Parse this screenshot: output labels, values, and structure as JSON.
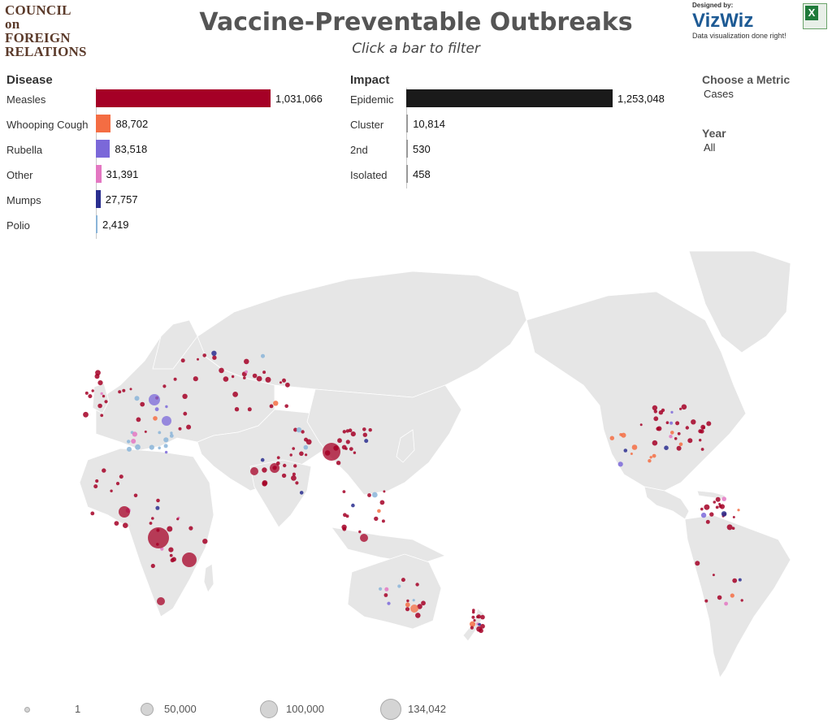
{
  "header": {
    "org_logo": "COUNCIL on FOREIGN RELATIONS",
    "title": "Vaccine-Preventable Outbreaks",
    "subtitle": "Click a bar to filter",
    "designer_label": "Designed by:",
    "designer_brand": "VizWiz",
    "designer_tagline": "Data visualization done right!",
    "export_icon": "excel-icon"
  },
  "disease_chart": {
    "heading": "Disease",
    "max": 1031066,
    "items": [
      {
        "label": "Measles",
        "value": 1031066,
        "value_label": "1,031,066",
        "color": "#a50026"
      },
      {
        "label": "Whooping Cough",
        "value": 88702,
        "value_label": "88,702",
        "color": "#f46d43"
      },
      {
        "label": "Rubella",
        "value": 83518,
        "value_label": "83,518",
        "color": "#7b68d9"
      },
      {
        "label": "Other",
        "value": 31391,
        "value_label": "31,391",
        "color": "#e377c2"
      },
      {
        "label": "Mumps",
        "value": 27757,
        "value_label": "27,757",
        "color": "#2a2e8f"
      },
      {
        "label": "Polio",
        "value": 2419,
        "value_label": "2,419",
        "color": "#8ab4d8"
      }
    ]
  },
  "impact_chart": {
    "heading": "Impact",
    "max": 1253048,
    "items": [
      {
        "label": "Epidemic",
        "value": 1253048,
        "value_label": "1,253,048",
        "color": "#1a1a1a"
      },
      {
        "label": "Cluster",
        "value": 10814,
        "value_label": "10,814",
        "color": "#999999"
      },
      {
        "label": "2nd",
        "value": 530,
        "value_label": "530",
        "color": "#999999"
      },
      {
        "label": "Isolated",
        "value": 458,
        "value_label": "458",
        "color": "#999999"
      }
    ]
  },
  "controls": {
    "metric_label": "Choose a Metric",
    "metric_value": "Cases",
    "year_label": "Year",
    "year_value": "All"
  },
  "legend": {
    "items": [
      {
        "label": "1",
        "value": 1
      },
      {
        "label": "50,000",
        "value": 50000
      },
      {
        "label": "100,000",
        "value": 100000
      },
      {
        "label": "134,042",
        "value": 134042
      }
    ]
  },
  "colors": {
    "measles": "#a50026",
    "whooping_cough": "#f46d43",
    "rubella": "#7b68d9",
    "other": "#e377c2",
    "mumps": "#2a2e8f",
    "polio": "#8ab4d8",
    "land": "#e6e6e6"
  }
}
